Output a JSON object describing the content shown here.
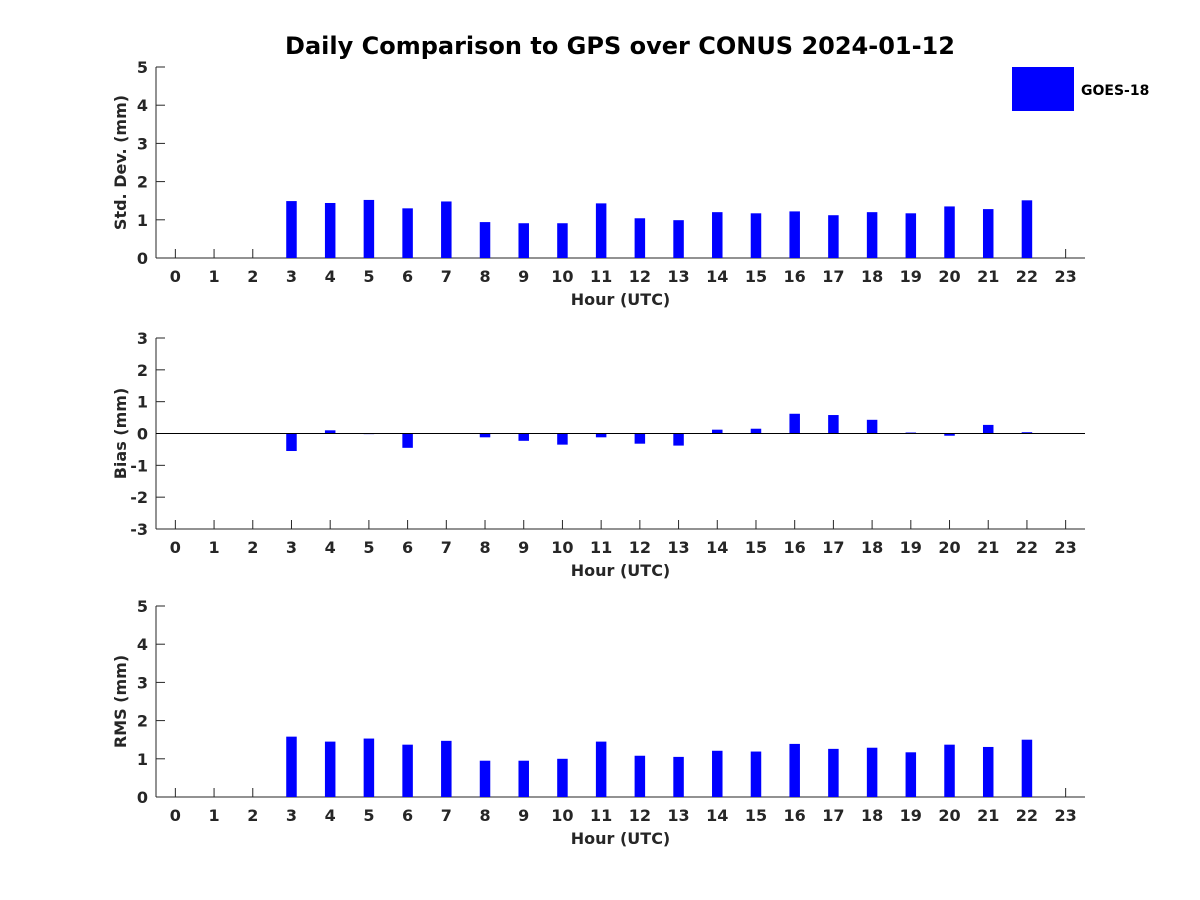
{
  "figure": {
    "title": "Daily Comparison to GPS over CONUS 2024-01-12",
    "legend": {
      "label": "GOES-18",
      "color": "#0000ff",
      "placement": "top-right"
    }
  },
  "chart_data": [
    {
      "type": "bar",
      "xlabel": "Hour (UTC)",
      "ylabel": "Std. Dev. (mm)",
      "xlim": [
        -0.5,
        23.5
      ],
      "ylim": [
        0,
        5
      ],
      "yticks": [
        0,
        1,
        2,
        3,
        4,
        5
      ],
      "categories": [
        0,
        1,
        2,
        3,
        4,
        5,
        6,
        7,
        8,
        9,
        10,
        11,
        12,
        13,
        14,
        15,
        16,
        17,
        18,
        19,
        20,
        21,
        22,
        23
      ],
      "series": [
        {
          "name": "GOES-18",
          "values": [
            null,
            null,
            null,
            1.49,
            1.44,
            1.52,
            1.3,
            1.48,
            0.94,
            0.91,
            0.91,
            1.43,
            1.04,
            0.99,
            1.2,
            1.17,
            1.22,
            1.12,
            1.2,
            1.17,
            1.35,
            1.28,
            1.51,
            null
          ]
        }
      ],
      "color": "#0000ff"
    },
    {
      "type": "bar",
      "xlabel": "Hour (UTC)",
      "ylabel": "Bias (mm)",
      "xlim": [
        -0.5,
        23.5
      ],
      "ylim": [
        -3,
        3
      ],
      "yticks": [
        -3,
        -2,
        -1,
        0,
        1,
        2,
        3
      ],
      "categories": [
        0,
        1,
        2,
        3,
        4,
        5,
        6,
        7,
        8,
        9,
        10,
        11,
        12,
        13,
        14,
        15,
        16,
        17,
        18,
        19,
        20,
        21,
        22,
        23
      ],
      "series": [
        {
          "name": "GOES-18",
          "values": [
            null,
            null,
            null,
            -0.55,
            0.1,
            -0.02,
            -0.45,
            0.0,
            -0.12,
            -0.23,
            -0.35,
            -0.12,
            -0.32,
            -0.38,
            0.12,
            0.15,
            0.62,
            0.58,
            0.43,
            0.03,
            -0.07,
            0.27,
            0.04,
            null
          ]
        }
      ],
      "color": "#0000ff"
    },
    {
      "type": "bar",
      "xlabel": "Hour (UTC)",
      "ylabel": "RMS (mm)",
      "xlim": [
        -0.5,
        23.5
      ],
      "ylim": [
        0,
        5
      ],
      "yticks": [
        0,
        1,
        2,
        3,
        4,
        5
      ],
      "categories": [
        0,
        1,
        2,
        3,
        4,
        5,
        6,
        7,
        8,
        9,
        10,
        11,
        12,
        13,
        14,
        15,
        16,
        17,
        18,
        19,
        20,
        21,
        22,
        23
      ],
      "series": [
        {
          "name": "GOES-18",
          "values": [
            null,
            null,
            null,
            1.58,
            1.45,
            1.53,
            1.37,
            1.47,
            0.95,
            0.95,
            1.0,
            1.45,
            1.08,
            1.05,
            1.21,
            1.19,
            1.39,
            1.26,
            1.29,
            1.17,
            1.37,
            1.31,
            1.5,
            null
          ]
        }
      ],
      "color": "#0000ff"
    }
  ]
}
